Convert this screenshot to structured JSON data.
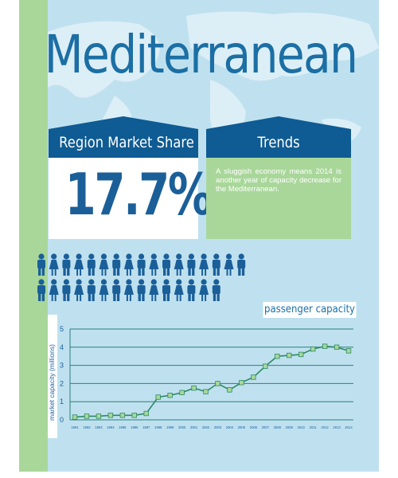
{
  "title": "Mediterranean",
  "market_share": {
    "label": "Region Market Share",
    "value": "17.7%"
  },
  "trends": {
    "label": "Trends",
    "text": "A sluggish economy means 2014 is another year of capacity decrease for the Mediterranean."
  },
  "people_icons": {
    "icon": "person-icon",
    "row_counts": [
      17,
      15
    ]
  },
  "colors": {
    "title": "#1b6fa4",
    "banner": "#0f5b93",
    "share_value": "#1b5f99",
    "green": "#a9d79a",
    "background": "#bfe1ef",
    "line": "#2d8a66",
    "marker": "#a9d79a"
  },
  "chart_data": {
    "type": "line",
    "title": "passenger capacity",
    "xlabel": "",
    "ylabel": "market capacity (millions)",
    "ylim": [
      0,
      5
    ],
    "yticks": [
      0,
      1,
      2,
      3,
      4,
      5
    ],
    "grid": true,
    "x": [
      "1991",
      "1992",
      "1993",
      "1994",
      "1995",
      "1996",
      "1997",
      "1998",
      "1999",
      "2000",
      "2001",
      "2002",
      "2003",
      "2004",
      "2005",
      "2006",
      "2007",
      "2008",
      "2009",
      "2010",
      "2011",
      "2012",
      "2013",
      "2014"
    ],
    "series": [
      {
        "values": [
          0.15,
          0.2,
          0.2,
          0.25,
          0.25,
          0.25,
          0.35,
          1.25,
          1.35,
          1.5,
          1.75,
          1.55,
          2.0,
          1.65,
          2.05,
          2.35,
          2.95,
          3.5,
          3.55,
          3.6,
          3.9,
          4.05,
          4.0,
          3.8
        ]
      }
    ]
  }
}
